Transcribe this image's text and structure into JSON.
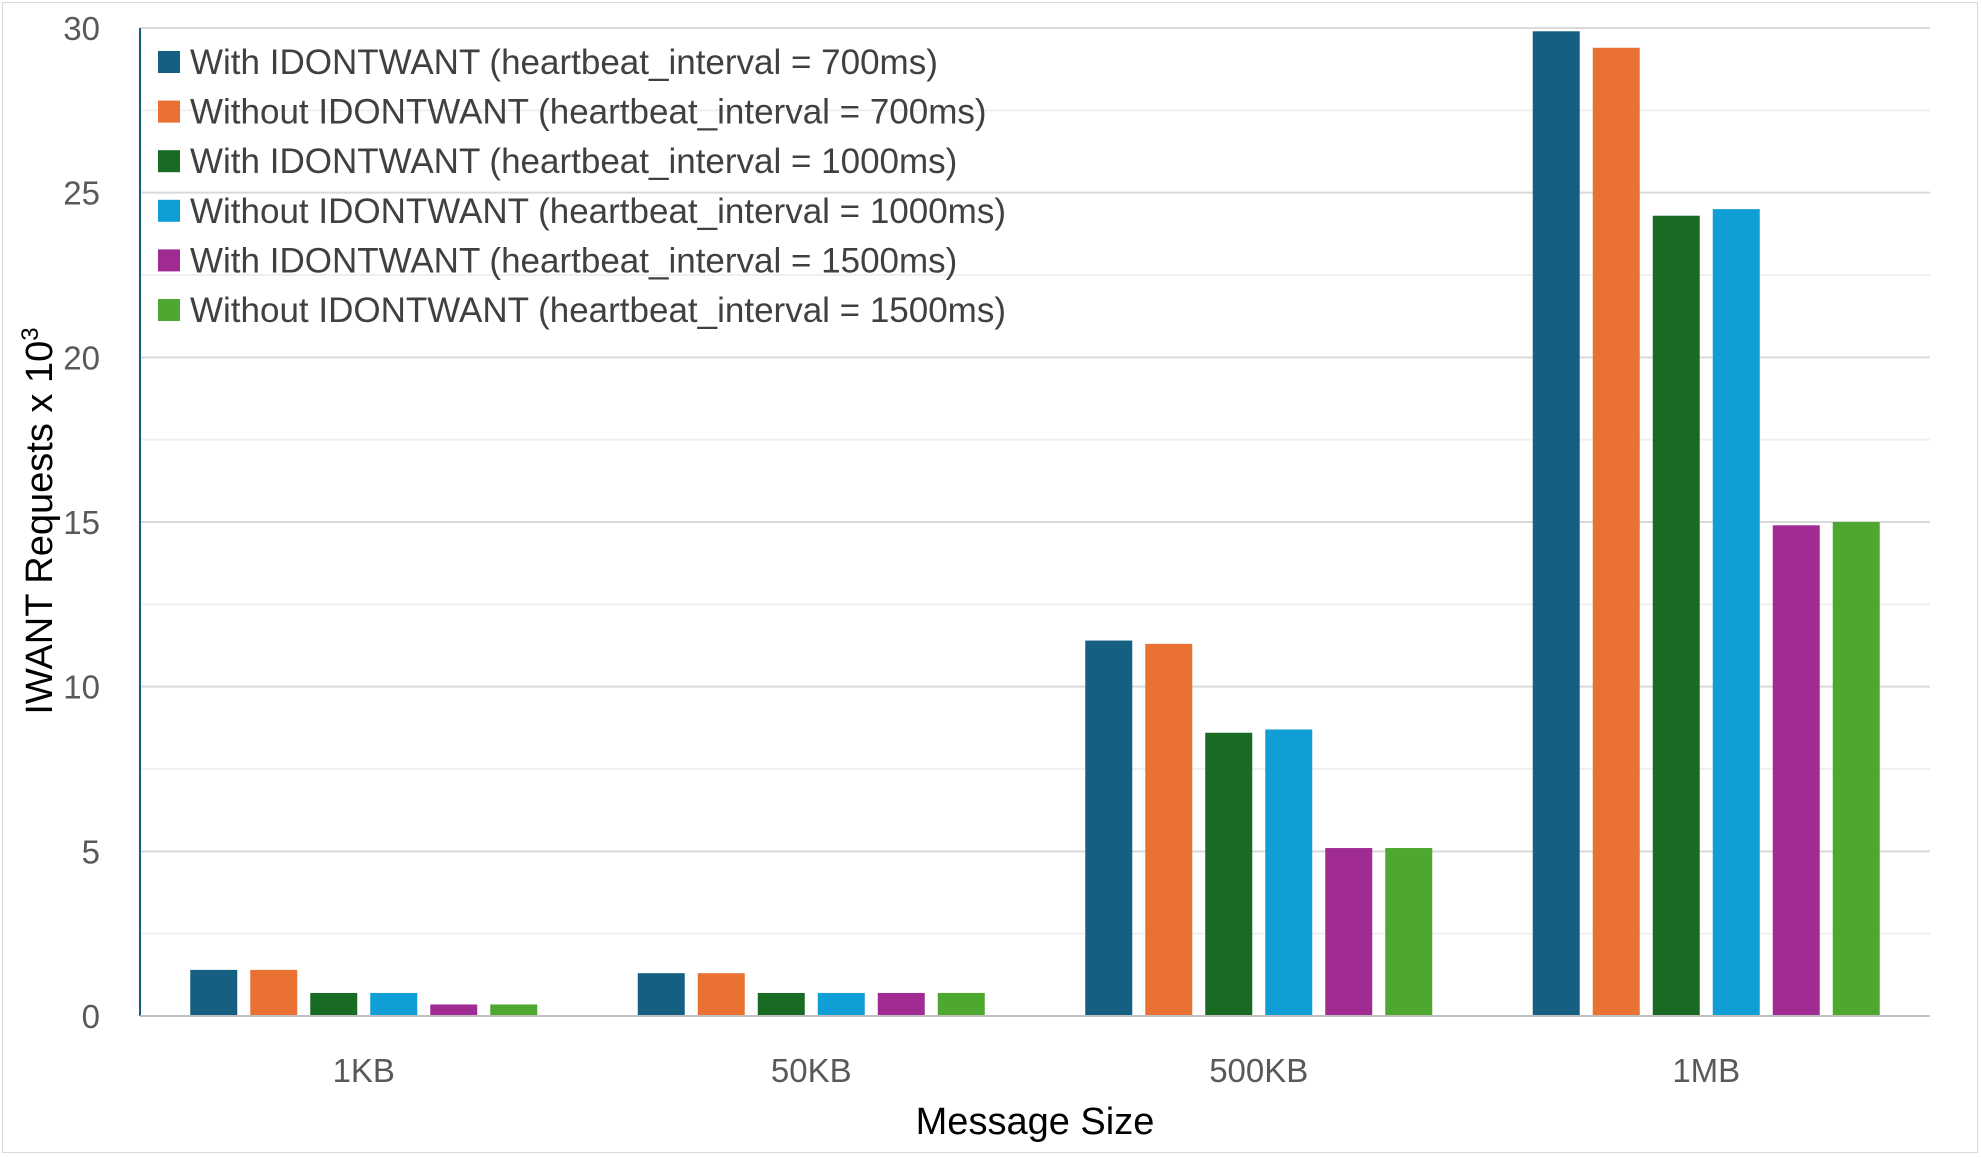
{
  "chart_data": {
    "type": "bar",
    "title": "",
    "xlabel": "Message Size",
    "ylabel": "IWANT Requests x 10",
    "ylabel_superscript": "3",
    "categories": [
      "1KB",
      "50KB",
      "500KB",
      "1MB"
    ],
    "ylim": [
      0,
      30
    ],
    "yticks": [
      0,
      5,
      10,
      15,
      20,
      25,
      30
    ],
    "grid": true,
    "legend_position": "top-left",
    "series": [
      {
        "name": "With IDONTWANT (heartbeat_interval = 700ms)",
        "color": "#156082",
        "values": [
          1.4,
          1.3,
          11.4,
          29.9
        ]
      },
      {
        "name": "Without IDONTWANT (heartbeat_interval = 700ms)",
        "color": "#e97132",
        "values": [
          1.4,
          1.3,
          11.3,
          29.4
        ]
      },
      {
        "name": "With IDONTWANT (heartbeat_interval = 1000ms)",
        "color": "#196b24",
        "values": [
          0.7,
          0.7,
          8.6,
          24.3
        ]
      },
      {
        "name": "Without IDONTWANT (heartbeat_interval = 1000ms)",
        "color": "#0f9ed5",
        "values": [
          0.7,
          0.7,
          8.7,
          24.5
        ]
      },
      {
        "name": "With IDONTWANT (heartbeat_interval = 1500ms)",
        "color": "#a02b93",
        "values": [
          0.35,
          0.7,
          5.1,
          14.9
        ]
      },
      {
        "name": "Without IDONTWANT (heartbeat_interval = 1500ms)",
        "color": "#4ea72e",
        "values": [
          0.35,
          0.7,
          5.1,
          15.0
        ]
      }
    ]
  }
}
